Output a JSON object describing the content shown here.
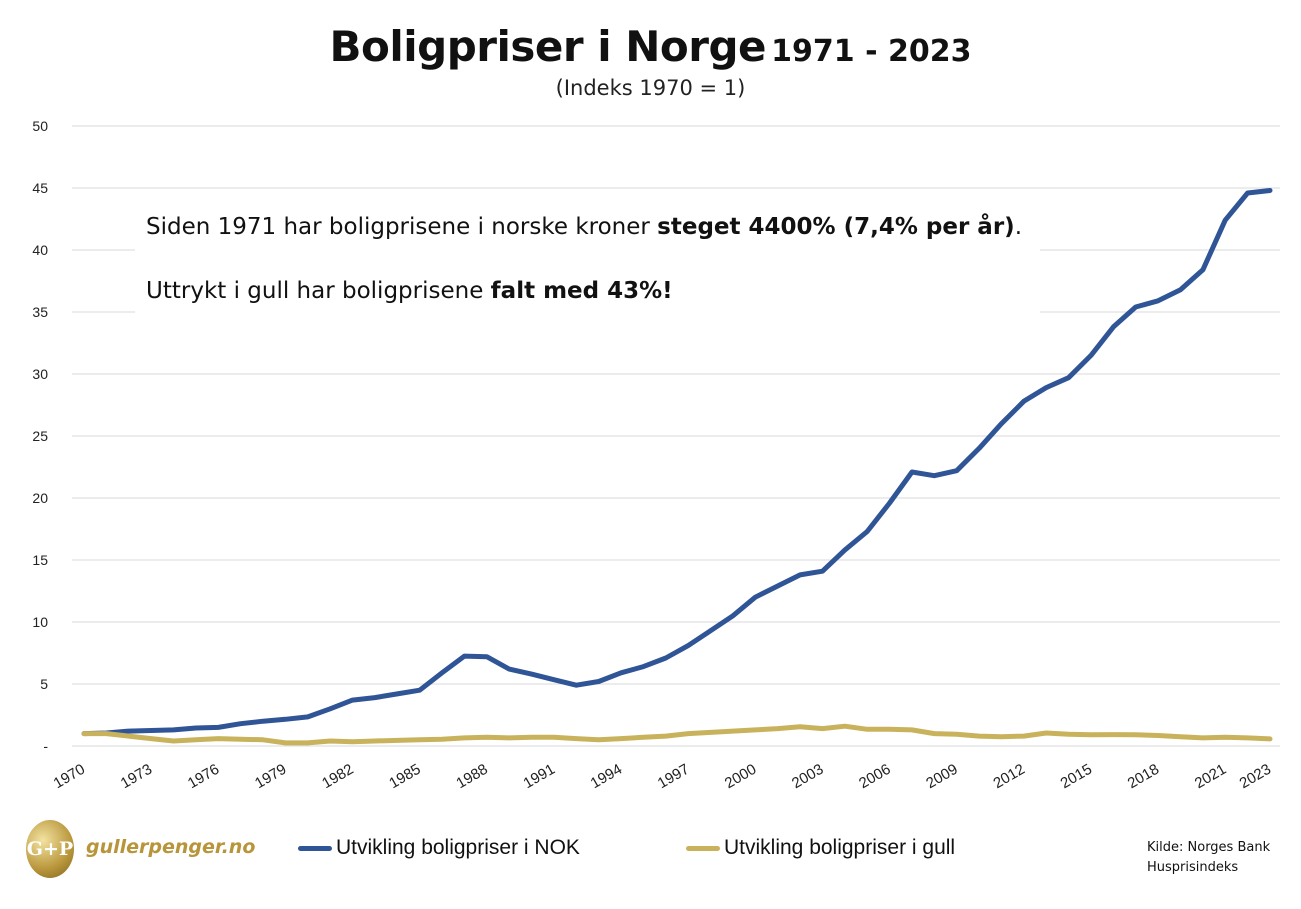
{
  "title": {
    "main": "Boligpriser i Norge",
    "range": "1971 - 2023",
    "subtitle": "(Indeks 1970 = 1)"
  },
  "annotation": {
    "line1_prefix": "Siden 1971 har boligprisene i norske kroner ",
    "line1_bold": "steget 4400% (7,4% per år)",
    "line1_suffix": ".",
    "line2_prefix": "Uttrykt i gull har boligprisene ",
    "line2_bold": "falt med 43%!"
  },
  "logo": {
    "mark": "G+P",
    "text": "gullerpenger.no"
  },
  "source": {
    "line1": "Kilde: Norges Bank",
    "line2": "Husprisindeks"
  },
  "colors": {
    "nok": "#2f5597",
    "gull": "#c9b25c",
    "grid": "#d9d9d9"
  },
  "chart_data": {
    "type": "line",
    "title": "Boligpriser i Norge 1971 - 2023",
    "subtitle": "(Indeks 1970 = 1)",
    "ylim": [
      0,
      50
    ],
    "yticks": [
      0,
      5,
      10,
      15,
      20,
      25,
      30,
      35,
      40,
      45,
      50
    ],
    "ytick_labels": [
      "-",
      "5",
      "10",
      "15",
      "20",
      "25",
      "30",
      "35",
      "40",
      "45",
      "50"
    ],
    "xtick_labels": [
      "1970",
      "1973",
      "1976",
      "1979",
      "1982",
      "1985",
      "1988",
      "1991",
      "1994",
      "1997",
      "2000",
      "2003",
      "2006",
      "2009",
      "2012",
      "2015",
      "2018",
      "2021",
      "2023"
    ],
    "grid": true,
    "legend": "bottom",
    "x": [
      1970,
      1971,
      1972,
      1973,
      1974,
      1975,
      1976,
      1977,
      1978,
      1979,
      1980,
      1981,
      1982,
      1983,
      1984,
      1985,
      1986,
      1987,
      1988,
      1989,
      1990,
      1991,
      1992,
      1993,
      1994,
      1995,
      1996,
      1997,
      1998,
      1999,
      2000,
      2001,
      2002,
      2003,
      2004,
      2005,
      2006,
      2007,
      2008,
      2009,
      2010,
      2011,
      2012,
      2013,
      2014,
      2015,
      2016,
      2017,
      2018,
      2019,
      2020,
      2021,
      2022,
      2023
    ],
    "series": [
      {
        "name": "Utvikling boligpriser i NOK",
        "color": "#2f5597",
        "values": [
          1.0,
          1.05,
          1.2,
          1.25,
          1.3,
          1.45,
          1.5,
          1.8,
          2.0,
          2.15,
          2.35,
          3.0,
          3.7,
          3.9,
          4.2,
          4.5,
          5.9,
          7.25,
          7.2,
          6.2,
          5.8,
          5.35,
          4.9,
          5.2,
          5.9,
          6.4,
          7.1,
          8.1,
          9.3,
          10.5,
          12.0,
          12.9,
          13.8,
          14.1,
          15.8,
          17.3,
          19.6,
          22.1,
          21.8,
          22.2,
          24.0,
          26.0,
          27.8,
          28.9,
          29.7,
          31.5,
          33.8,
          35.4,
          35.9,
          36.8,
          38.4,
          42.4,
          44.6,
          44.8
        ]
      },
      {
        "name": "Utvikling boligpriser i gull",
        "color": "#c9b25c",
        "values": [
          1.0,
          1.0,
          0.8,
          0.6,
          0.4,
          0.5,
          0.6,
          0.55,
          0.5,
          0.25,
          0.25,
          0.4,
          0.35,
          0.4,
          0.45,
          0.5,
          0.55,
          0.65,
          0.7,
          0.65,
          0.7,
          0.7,
          0.6,
          0.5,
          0.6,
          0.7,
          0.8,
          1.0,
          1.1,
          1.2,
          1.3,
          1.4,
          1.55,
          1.4,
          1.6,
          1.35,
          1.35,
          1.3,
          1.0,
          0.95,
          0.8,
          0.75,
          0.8,
          1.05,
          0.95,
          0.9,
          0.92,
          0.9,
          0.85,
          0.75,
          0.65,
          0.7,
          0.65,
          0.57
        ]
      }
    ]
  }
}
